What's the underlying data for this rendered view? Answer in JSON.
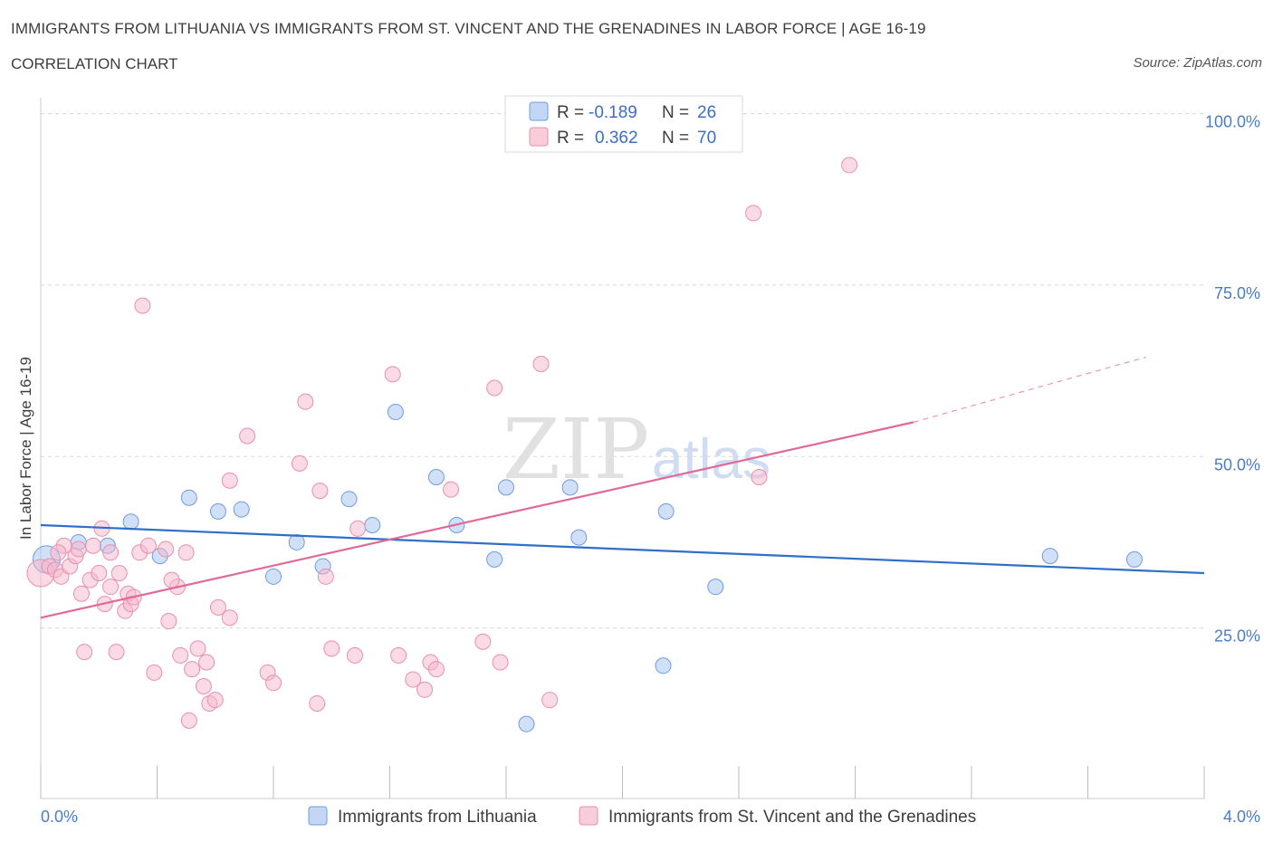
{
  "header": {
    "title": "IMMIGRANTS FROM LITHUANIA VS IMMIGRANTS FROM ST. VINCENT AND THE GRENADINES IN LABOR FORCE | AGE 16-19",
    "subtitle": "CORRELATION CHART",
    "source": "Source: ZipAtlas.com"
  },
  "watermark": {
    "zip": "ZIP",
    "atlas": "atlas"
  },
  "stats": [
    {
      "r_label": "R =",
      "r_value": "-0.189",
      "n_label": "N =",
      "n_value": "26",
      "color": "#a9c6f0"
    },
    {
      "r_label": "R =",
      "r_value": "0.362",
      "n_label": "N =",
      "n_value": "70",
      "color": "#f5b8cb"
    }
  ],
  "chart_data": {
    "type": "scatter",
    "ylabel": "In Labor Force | Age 16-19",
    "xlim": [
      0,
      4.0
    ],
    "ylim": [
      0,
      100
    ],
    "x_tick_labels": [
      "0.0%",
      "4.0%"
    ],
    "y_ticks": [
      25,
      50,
      75,
      100
    ],
    "y_tick_labels": [
      "25.0%",
      "50.0%",
      "75.0%",
      "100.0%"
    ],
    "grid": "horizontal dashed",
    "legend_position": "bottom",
    "series": [
      {
        "name": "Immigrants from Lithuania",
        "color": "#a9c6f0",
        "stroke": "#6f9be0",
        "line_color": "#2f6ec9",
        "trend": {
          "x0": 0.0,
          "y0": 40.0,
          "x1": 4.0,
          "y1": 33.0
        },
        "points": [
          [
            0.02,
            35.0
          ],
          [
            0.13,
            37.5
          ],
          [
            0.23,
            37.0
          ],
          [
            0.31,
            40.5
          ],
          [
            0.41,
            35.5
          ],
          [
            0.51,
            44.0
          ],
          [
            0.61,
            42.0
          ],
          [
            0.69,
            42.3
          ],
          [
            0.8,
            32.5
          ],
          [
            0.88,
            37.5
          ],
          [
            0.97,
            34.0
          ],
          [
            1.06,
            43.8
          ],
          [
            1.14,
            40.0
          ],
          [
            1.22,
            56.5
          ],
          [
            1.36,
            47.0
          ],
          [
            1.43,
            40.0
          ],
          [
            1.56,
            35.0
          ],
          [
            1.6,
            45.5
          ],
          [
            1.67,
            11.0
          ],
          [
            1.82,
            45.5
          ],
          [
            1.85,
            38.2
          ],
          [
            2.15,
            42.0
          ],
          [
            2.14,
            19.5
          ],
          [
            2.32,
            31.0
          ],
          [
            3.47,
            35.5
          ],
          [
            3.76,
            35.0
          ]
        ]
      },
      {
        "name": "Immigrants from St. Vincent and the Grenadines",
        "color": "#f5b8cb",
        "stroke": "#ea8fab",
        "line_color": "#e0699a",
        "trend": {
          "x0": 0.0,
          "y0": 26.5,
          "x1": 3.0,
          "y1": 55.0
        },
        "trend_dashed_to": {
          "x": 3.8,
          "y": 64.5
        },
        "points": [
          [
            0.0,
            33.0
          ],
          [
            0.03,
            34.0
          ],
          [
            0.05,
            33.5
          ],
          [
            0.07,
            32.5
          ],
          [
            0.08,
            37.0
          ],
          [
            0.1,
            34.0
          ],
          [
            0.12,
            35.5
          ],
          [
            0.13,
            36.5
          ],
          [
            0.14,
            30.0
          ],
          [
            0.15,
            21.5
          ],
          [
            0.17,
            32.0
          ],
          [
            0.18,
            37.0
          ],
          [
            0.2,
            33.0
          ],
          [
            0.21,
            39.5
          ],
          [
            0.22,
            28.5
          ],
          [
            0.24,
            31.0
          ],
          [
            0.24,
            36.0
          ],
          [
            0.26,
            21.5
          ],
          [
            0.27,
            33.0
          ],
          [
            0.29,
            27.5
          ],
          [
            0.3,
            30.0
          ],
          [
            0.31,
            28.5
          ],
          [
            0.32,
            29.5
          ],
          [
            0.34,
            36.0
          ],
          [
            0.35,
            72.0
          ],
          [
            0.37,
            37.0
          ],
          [
            0.39,
            18.5
          ],
          [
            0.43,
            36.5
          ],
          [
            0.44,
            26.0
          ],
          [
            0.47,
            31.0
          ],
          [
            0.48,
            21.0
          ],
          [
            0.5,
            36.0
          ],
          [
            0.51,
            11.5
          ],
          [
            0.52,
            19.0
          ],
          [
            0.54,
            22.0
          ],
          [
            0.56,
            16.5
          ],
          [
            0.57,
            20.0
          ],
          [
            0.58,
            14.0
          ],
          [
            0.6,
            14.5
          ],
          [
            0.61,
            28.0
          ],
          [
            0.65,
            26.5
          ],
          [
            0.65,
            46.5
          ],
          [
            0.71,
            53.0
          ],
          [
            0.78,
            18.5
          ],
          [
            0.8,
            17.0
          ],
          [
            0.89,
            49.0
          ],
          [
            0.91,
            58.0
          ],
          [
            0.95,
            14.0
          ],
          [
            0.96,
            45.0
          ],
          [
            0.98,
            32.5
          ],
          [
            1.0,
            22.0
          ],
          [
            1.08,
            21.0
          ],
          [
            1.09,
            39.5
          ],
          [
            1.21,
            62.0
          ],
          [
            1.23,
            21.0
          ],
          [
            1.28,
            17.5
          ],
          [
            1.32,
            16.0
          ],
          [
            1.34,
            20.0
          ],
          [
            1.36,
            19.0
          ],
          [
            1.41,
            45.2
          ],
          [
            1.52,
            23.0
          ],
          [
            1.56,
            60.0
          ],
          [
            1.58,
            20.0
          ],
          [
            1.72,
            63.5
          ],
          [
            1.75,
            14.5
          ],
          [
            2.45,
            85.5
          ],
          [
            2.47,
            47.0
          ],
          [
            2.78,
            92.5
          ],
          [
            0.06,
            36.0
          ],
          [
            0.45,
            32.0
          ]
        ]
      }
    ]
  }
}
